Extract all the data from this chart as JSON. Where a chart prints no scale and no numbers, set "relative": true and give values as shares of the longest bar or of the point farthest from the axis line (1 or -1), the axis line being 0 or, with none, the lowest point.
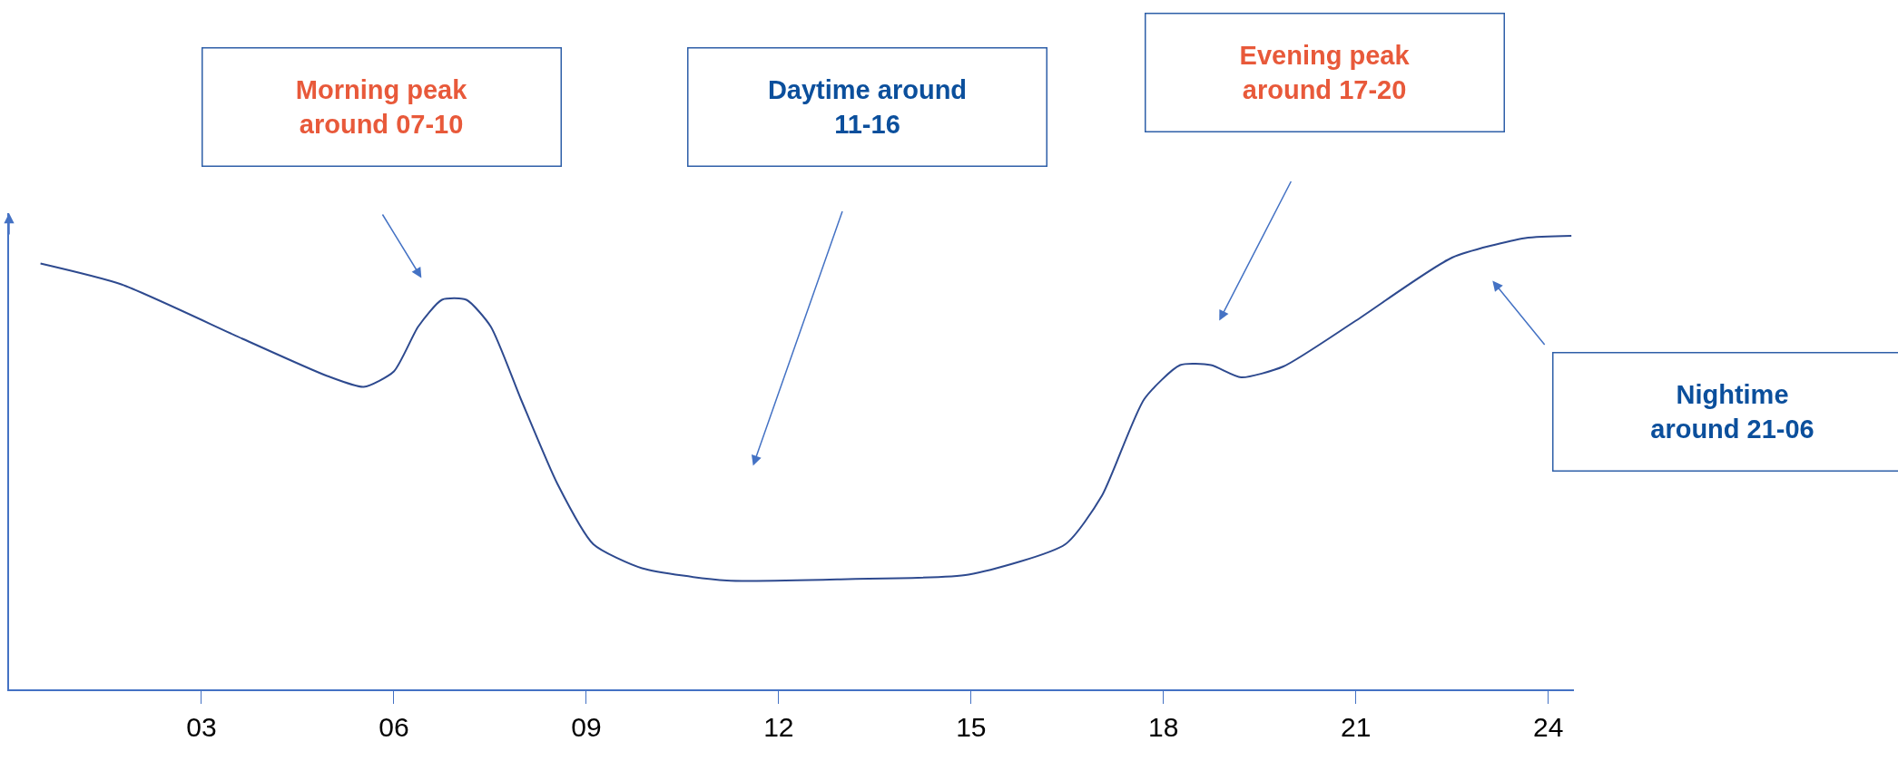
{
  "chart_data": {
    "type": "line",
    "relative": true,
    "x": [
      0.49,
      1.75,
      3.64,
      4.96,
      5.53,
      6.0,
      6.38,
      6.75,
      7.13,
      7.51,
      7.98,
      8.55,
      9.11,
      9.87,
      11.19,
      13.08,
      14.96,
      16.47,
      17.04,
      17.7,
      18.26,
      18.74,
      19.21,
      19.87,
      21.0,
      22.5,
      23.64,
      24.36
    ],
    "series": [
      {
        "color": "#2e4a8f",
        "values": [
          0.939,
          0.893,
          0.773,
          0.691,
          0.667,
          0.701,
          0.8,
          0.859,
          0.859,
          0.8,
          0.64,
          0.453,
          0.32,
          0.267,
          0.24,
          0.243,
          0.253,
          0.32,
          0.427,
          0.64,
          0.715,
          0.715,
          0.688,
          0.712,
          0.813,
          0.952,
          0.995,
          1.0
        ]
      }
    ],
    "xlim": [
      0,
      24.4
    ],
    "xticks": [
      {
        "value": 3,
        "label": "03"
      },
      {
        "value": 6,
        "label": "06"
      },
      {
        "value": 9,
        "label": "09"
      },
      {
        "value": 12,
        "label": "12"
      },
      {
        "value": 15,
        "label": "15"
      },
      {
        "value": 18,
        "label": "18"
      },
      {
        "value": 21,
        "label": "21"
      },
      {
        "value": 24,
        "label": "24"
      }
    ],
    "annotations": [
      "Morning peak\naround 07-10",
      "Daytime around\n11-16",
      "Evening peak\naround 17-20",
      "Nightime\naround 21-06"
    ]
  }
}
